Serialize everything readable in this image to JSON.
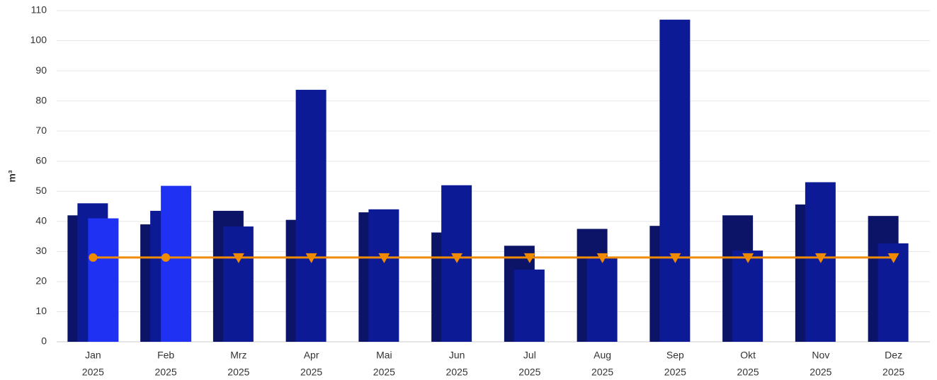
{
  "chart_data": {
    "type": "bar",
    "y_label": "m³",
    "categories": [
      [
        "Jan",
        "2025"
      ],
      [
        "Feb",
        "2025"
      ],
      [
        "Mrz",
        "2025"
      ],
      [
        "Apr",
        "2025"
      ],
      [
        "Mai",
        "2025"
      ],
      [
        "Jun",
        "2025"
      ],
      [
        "Jul",
        "2025"
      ],
      [
        "Aug",
        "2025"
      ],
      [
        "Sep",
        "2025"
      ],
      [
        "Okt",
        "2025"
      ],
      [
        "Nov",
        "2025"
      ],
      [
        "Dez",
        "2025"
      ]
    ],
    "series": [
      {
        "color": "#0b1466",
        "values": [
          42,
          39,
          43.5,
          40.5,
          43,
          36.3,
          31.9,
          37.5,
          38.5,
          42,
          45.6,
          41.8
        ]
      },
      {
        "color": "#0c1a96",
        "values": [
          46,
          43.5,
          38.3,
          83.7,
          44,
          52,
          24,
          28,
          107,
          30.3,
          53,
          32.7
        ]
      },
      {
        "color": "#1f31f2",
        "values": [
          41,
          51.8,
          null,
          null,
          null,
          null,
          null,
          null,
          null,
          null,
          null,
          null
        ]
      }
    ],
    "line": {
      "type": "line",
      "color": "#f08a00",
      "values": [
        28,
        28,
        28,
        28,
        28,
        28,
        28,
        28,
        28,
        28,
        28,
        28
      ],
      "markers": [
        "circle",
        "circle",
        "triangle-down",
        "triangle-down",
        "triangle-down",
        "triangle-down",
        "triangle-down",
        "triangle-down",
        "triangle-down",
        "triangle-down",
        "triangle-down",
        "triangle-down"
      ]
    },
    "ylim": [
      0,
      110
    ],
    "yticks": [
      0,
      10,
      20,
      30,
      40,
      50,
      60,
      70,
      80,
      90,
      100,
      110
    ],
    "grid": true
  }
}
